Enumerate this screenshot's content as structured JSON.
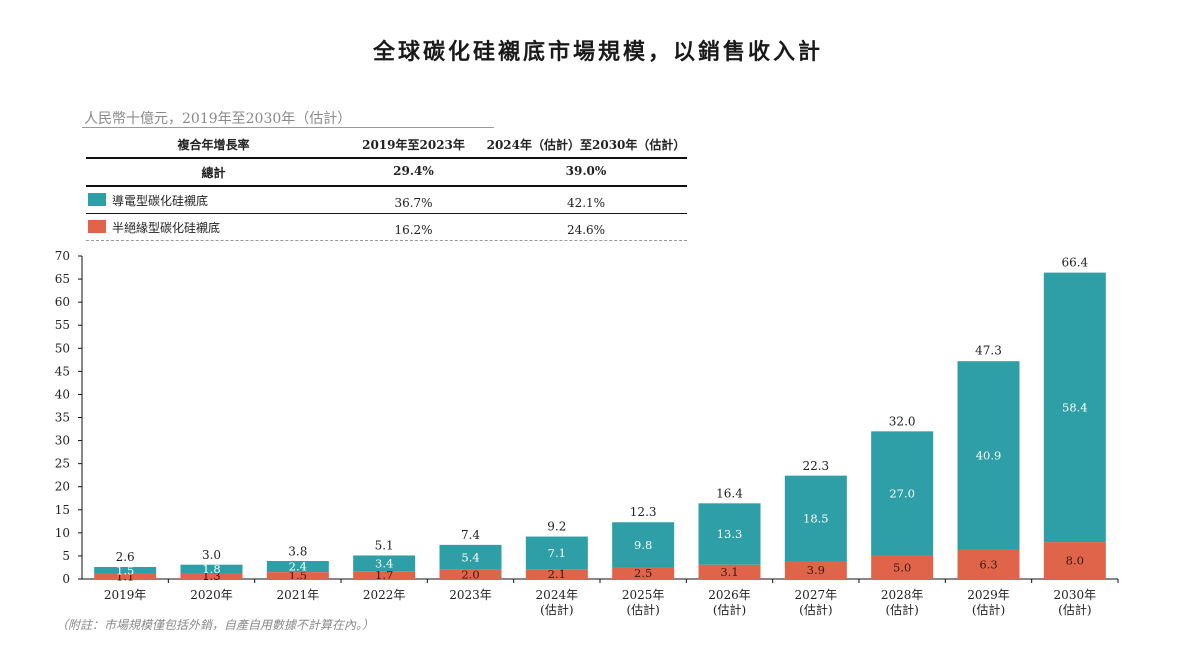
{
  "title": "全球碳化硅襯底市場規模，以銷售收入計",
  "unit_label": "人民幣十億元，2019年至2030年（估計）",
  "cagr_table": {
    "header": [
      "複合年增長率",
      "2019年至2023年",
      "2024年（估計）至2030年（估計）"
    ],
    "total": {
      "label": "總計",
      "v1": "29.4%",
      "v2": "39.0%"
    },
    "rows": [
      {
        "label": "導電型碳化硅襯底",
        "v1": "36.7%",
        "v2": "42.1%",
        "color": "#2e9fa6"
      },
      {
        "label": "半絕緣型碳化硅襯底",
        "v1": "16.2%",
        "v2": "24.6%",
        "color": "#e0644a"
      }
    ]
  },
  "footnote": "（附註：市場規模僅包括外銷，自產自用數據不計算在內。）",
  "chart_data": {
    "type": "bar",
    "stacked": true,
    "categories": [
      "2019年",
      "2020年",
      "2021年",
      "2022年",
      "2023年",
      "2024年\n(估計)",
      "2025年\n(估計)",
      "2026年\n(估計)",
      "2027年\n(估計)",
      "2028年\n(估計)",
      "2029年\n(估計)",
      "2030年\n(估計)"
    ],
    "series": [
      {
        "name": "半絕緣型碳化硅襯底",
        "color": "#e0644a",
        "values": [
          1.1,
          1.3,
          1.5,
          1.7,
          2.0,
          2.1,
          2.5,
          3.1,
          3.9,
          5.0,
          6.3,
          8.0
        ]
      },
      {
        "name": "導電型碳化硅襯底",
        "color": "#2e9fa6",
        "values": [
          1.5,
          1.8,
          2.4,
          3.4,
          5.4,
          7.1,
          9.8,
          13.3,
          18.5,
          27.0,
          40.9,
          58.4
        ]
      }
    ],
    "totals": [
      2.6,
      3.0,
      3.8,
      5.1,
      7.4,
      9.2,
      12.3,
      16.4,
      22.3,
      32.0,
      47.3,
      66.4
    ],
    "ylim": [
      0,
      70
    ],
    "yticks": [
      0,
      5,
      10,
      15,
      20,
      25,
      30,
      35,
      40,
      45,
      50,
      55,
      60,
      65,
      70
    ]
  }
}
